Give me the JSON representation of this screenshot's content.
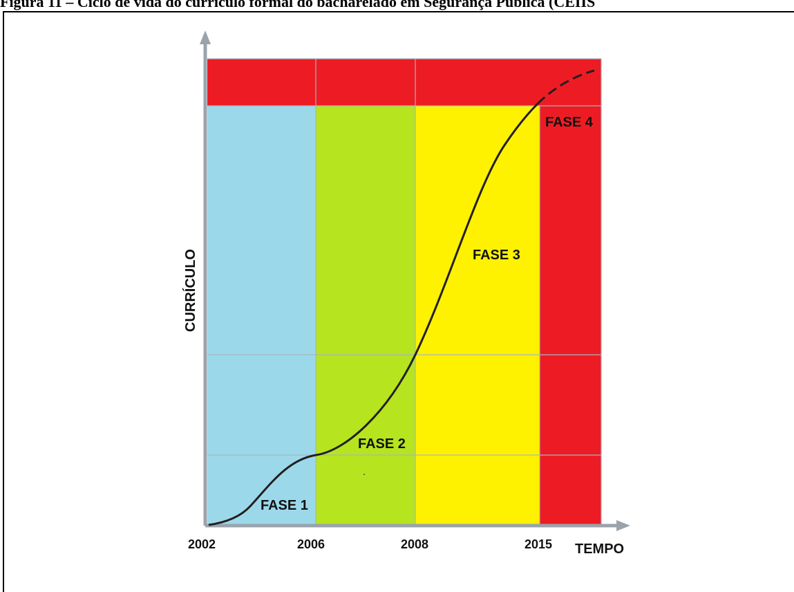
{
  "caption": "Figura 11 – Ciclo de vida do currículo formal do bacharelado em Segurança Pública (CEIIS",
  "diagram": {
    "y_axis_label": "CURRÍCULO",
    "x_axis_label": "TEMPO",
    "years": [
      "2002",
      "2006",
      "2008",
      "2015"
    ],
    "phases": [
      {
        "label": "FASE 1",
        "color": "#9bd9ea"
      },
      {
        "label": "FASE 2",
        "color": "#b6e41f"
      },
      {
        "label": "FASE 3",
        "color": "#fff200"
      },
      {
        "label": "FASE 4",
        "color": "#ed1c24"
      }
    ],
    "top_band_color": "#ed1c24",
    "curve_color": "#231f20"
  }
}
